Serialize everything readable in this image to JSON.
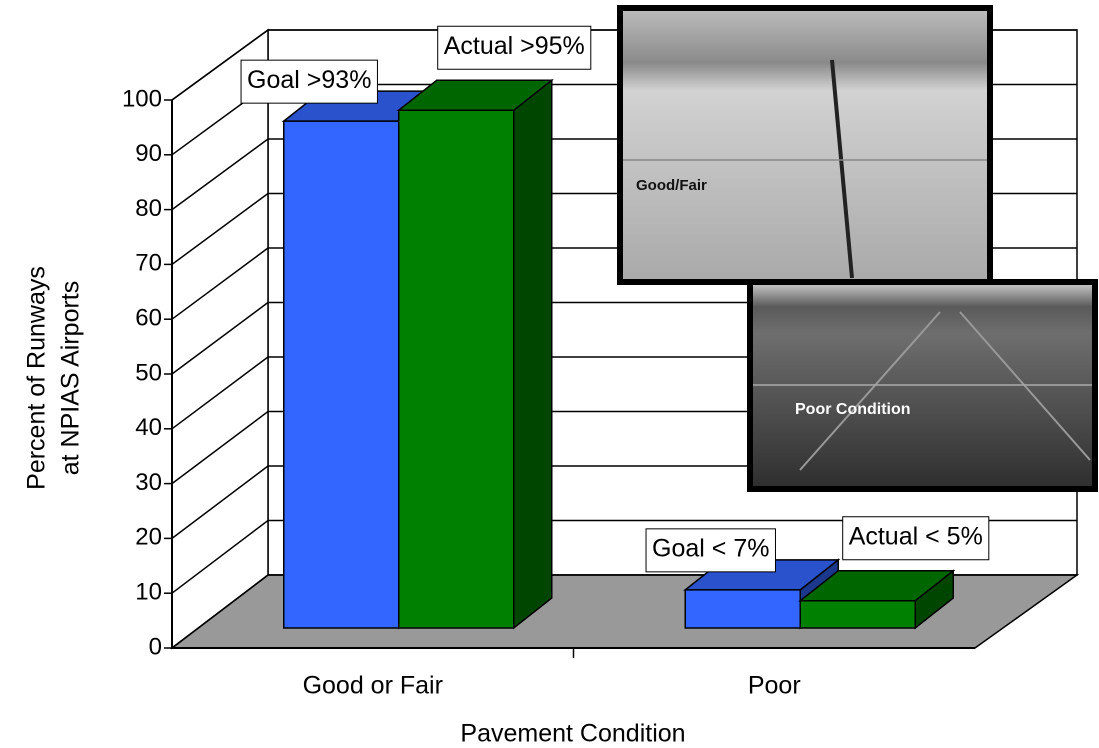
{
  "chart_data": {
    "type": "bar3d",
    "categories": [
      "Good or Fair",
      "Poor"
    ],
    "series": [
      {
        "color": "#3366ff",
        "values": [
          93,
          7
        ],
        "value_labels": [
          "Goal >93%",
          "Goal < 7%"
        ]
      },
      {
        "color": "#008000",
        "values": [
          95,
          5
        ],
        "value_labels": [
          "Actual >95%",
          "Actual < 5%"
        ]
      }
    ],
    "x_label": "Pavement Condition",
    "y_label": [
      "Percent of Runways",
      "at NPIAS Airports"
    ],
    "ylim": [
      0,
      100
    ],
    "yticks": [
      0,
      10,
      20,
      30,
      40,
      50,
      60,
      70,
      80,
      90,
      100
    ],
    "grid": true,
    "annotations": [
      "Good/Fair",
      "Poor Condition"
    ]
  }
}
